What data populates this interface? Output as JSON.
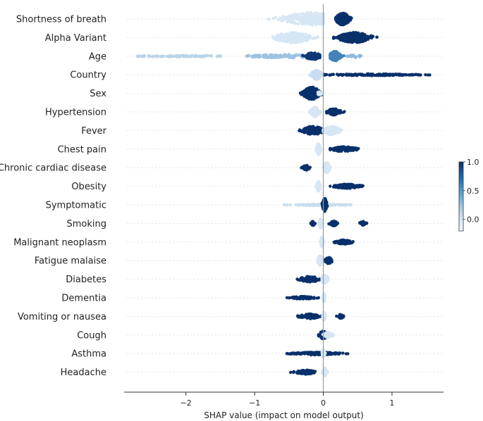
{
  "chart_data": {
    "type": "scatter",
    "subtype": "shap-beeswarm",
    "title": "",
    "xlabel": "SHAP value (impact on model output)",
    "ylabel": "",
    "xlim": [
      -2.9,
      1.75
    ],
    "xticks": [
      -2,
      -1,
      0,
      1
    ],
    "xtick_labels": [
      "−2",
      "−1",
      "0",
      "1"
    ],
    "colorbar": {
      "ticks": [
        1.0,
        0.5,
        0.0
      ],
      "tick_labels": [
        "1.0",
        "0.5",
        "0.0"
      ],
      "colormap": "Blues",
      "range": [
        -0.2,
        1.0
      ]
    },
    "colors": {
      "low": "#d6e6f4",
      "mid": "#4a8cc4",
      "high": "#08306b",
      "axis": "#333333",
      "zero_line": "#999999",
      "grid": "#dddddd"
    },
    "features": [
      {
        "name": "Shortness of breath",
        "clusters": [
          {
            "x": [
              -0.8,
              0.0
            ],
            "peak": -0.18,
            "width": 0.42,
            "height": 0.9,
            "color": 0.0,
            "n": 260
          },
          {
            "x": [
              0.18,
              0.5
            ],
            "peak": 0.28,
            "width": 0.1,
            "height": 0.85,
            "color": 1.0,
            "n": 220
          }
        ]
      },
      {
        "name": "Alpha Variant",
        "clusters": [
          {
            "x": [
              -0.9,
              -0.05
            ],
            "peak": -0.45,
            "width": 0.25,
            "height": 0.75,
            "color": 0.0,
            "n": 220
          },
          {
            "x": [
              0.05,
              0.78
            ],
            "peak": 0.45,
            "width": 0.22,
            "height": 0.75,
            "color": 1.0,
            "n": 210
          }
        ]
      },
      {
        "name": "Age",
        "clusters": [
          {
            "x": [
              -2.7,
              -1.5
            ],
            "peak": -2.1,
            "width": 0.7,
            "height": 0.1,
            "color": 0.1,
            "n": 110
          },
          {
            "x": [
              -1.5,
              -0.3
            ],
            "peak": -0.6,
            "width": 0.5,
            "height": 0.25,
            "color": 0.2,
            "n": 120
          },
          {
            "x": [
              -0.3,
              -0.05
            ],
            "peak": -0.15,
            "width": 0.12,
            "height": 0.5,
            "color": 0.95,
            "n": 90
          },
          {
            "x": [
              0.1,
              0.4
            ],
            "peak": 0.17,
            "width": 0.08,
            "height": 0.7,
            "color": 0.55,
            "n": 110
          },
          {
            "x": [
              0.3,
              0.6
            ],
            "peak": 0.45,
            "width": 0.1,
            "height": 0.2,
            "color": 0.25,
            "n": 25
          }
        ]
      },
      {
        "name": "Country",
        "clusters": [
          {
            "x": [
              -0.2,
              0.0
            ],
            "peak": -0.1,
            "width": 0.07,
            "height": 0.7,
            "color": 0.05,
            "n": 150
          },
          {
            "x": [
              0.02,
              1.55
            ],
            "peak": 0.7,
            "width": 0.7,
            "height": 0.12,
            "color": 1.0,
            "n": 180
          }
        ]
      },
      {
        "name": "Sex",
        "clusters": [
          {
            "x": [
              -0.45,
              0.0
            ],
            "peak": -0.17,
            "width": 0.12,
            "height": 0.9,
            "color": 1.0,
            "n": 260
          },
          {
            "x": [
              -0.1,
              0.0
            ],
            "peak": -0.05,
            "width": 0.04,
            "height": 0.25,
            "color": 0.0,
            "n": 30
          }
        ]
      },
      {
        "name": "Hypertension",
        "clusters": [
          {
            "x": [
              -0.25,
              -0.02
            ],
            "peak": -0.12,
            "width": 0.06,
            "height": 0.7,
            "color": 0.0,
            "n": 160
          },
          {
            "x": [
              0.02,
              0.35
            ],
            "peak": 0.15,
            "width": 0.1,
            "height": 0.45,
            "color": 1.0,
            "n": 90
          }
        ]
      },
      {
        "name": "Fever",
        "clusters": [
          {
            "x": [
              -0.5,
              -0.02
            ],
            "peak": -0.15,
            "width": 0.15,
            "height": 0.6,
            "color": 1.0,
            "n": 170
          },
          {
            "x": [
              0.0,
              0.4
            ],
            "peak": 0.12,
            "width": 0.12,
            "height": 0.6,
            "color": 0.0,
            "n": 160
          }
        ]
      },
      {
        "name": "Chest pain",
        "clusters": [
          {
            "x": [
              -0.12,
              -0.02
            ],
            "peak": -0.07,
            "width": 0.025,
            "height": 0.8,
            "color": 0.0,
            "n": 110
          },
          {
            "x": [
              0.1,
              0.62
            ],
            "peak": 0.3,
            "width": 0.18,
            "height": 0.35,
            "color": 1.0,
            "n": 120
          }
        ]
      },
      {
        "name": "Chronic cardiac disease",
        "clusters": [
          {
            "x": [
              -0.35,
              -0.18
            ],
            "peak": -0.25,
            "width": 0.05,
            "height": 0.35,
            "color": 1.0,
            "n": 60
          },
          {
            "x": [
              -0.05,
              0.12
            ],
            "peak": 0.05,
            "width": 0.04,
            "height": 0.75,
            "color": 0.0,
            "n": 140
          }
        ]
      },
      {
        "name": "Obesity",
        "clusters": [
          {
            "x": [
              -0.12,
              -0.02
            ],
            "peak": -0.07,
            "width": 0.025,
            "height": 0.7,
            "color": 0.0,
            "n": 100
          },
          {
            "x": [
              0.1,
              0.72
            ],
            "peak": 0.35,
            "width": 0.2,
            "height": 0.3,
            "color": 1.0,
            "n": 110
          }
        ]
      },
      {
        "name": "Symptomatic",
        "clusters": [
          {
            "x": [
              -1.0,
              0.4
            ],
            "peak": 0.0,
            "width": 0.4,
            "height": 0.12,
            "color": 0.05,
            "n": 110
          },
          {
            "x": [
              -0.05,
              0.08
            ],
            "peak": 0.02,
            "width": 0.03,
            "height": 0.95,
            "color": 1.0,
            "n": 140
          }
        ]
      },
      {
        "name": "Smoking",
        "clusters": [
          {
            "x": [
              -0.2,
              -0.1
            ],
            "peak": -0.15,
            "width": 0.03,
            "height": 0.3,
            "color": 1.0,
            "n": 30
          },
          {
            "x": [
              -0.08,
              0.0
            ],
            "peak": -0.04,
            "width": 0.02,
            "height": 0.7,
            "color": 0.0,
            "n": 100
          },
          {
            "x": [
              0.08,
              0.22
            ],
            "peak": 0.15,
            "width": 0.05,
            "height": 0.35,
            "color": 1.0,
            "n": 50
          },
          {
            "x": [
              0.5,
              0.66
            ],
            "peak": 0.58,
            "width": 0.05,
            "height": 0.3,
            "color": 1.0,
            "n": 30
          }
        ]
      },
      {
        "name": "Malignant neoplasm",
        "clusters": [
          {
            "x": [
              -0.06,
              0.02
            ],
            "peak": -0.02,
            "width": 0.02,
            "height": 0.7,
            "color": 0.0,
            "n": 100
          },
          {
            "x": [
              0.1,
              0.5
            ],
            "peak": 0.3,
            "width": 0.12,
            "height": 0.3,
            "color": 1.0,
            "n": 100
          }
        ]
      },
      {
        "name": "Fatigue malaise",
        "clusters": [
          {
            "x": [
              -0.1,
              0.0
            ],
            "peak": -0.05,
            "width": 0.03,
            "height": 0.7,
            "color": 0.0,
            "n": 100
          },
          {
            "x": [
              0.0,
              0.2
            ],
            "peak": 0.08,
            "width": 0.05,
            "height": 0.45,
            "color": 1.0,
            "n": 70
          }
        ]
      },
      {
        "name": "Diabetes",
        "clusters": [
          {
            "x": [
              -0.55,
              -0.05
            ],
            "peak": -0.2,
            "width": 0.15,
            "height": 0.4,
            "color": 1.0,
            "n": 90
          },
          {
            "x": [
              -0.02,
              0.18
            ],
            "peak": 0.02,
            "width": 0.05,
            "height": 0.6,
            "color": 0.0,
            "n": 100
          }
        ]
      },
      {
        "name": "Dementia",
        "clusters": [
          {
            "x": [
              -0.55,
              -0.02
            ],
            "peak": -0.3,
            "width": 0.18,
            "height": 0.2,
            "color": 1.0,
            "n": 70
          },
          {
            "x": [
              -0.02,
              0.04
            ],
            "peak": 0.01,
            "width": 0.015,
            "height": 0.6,
            "color": 0.0,
            "n": 70
          }
        ]
      },
      {
        "name": "Vomiting or nausea",
        "clusters": [
          {
            "x": [
              -0.45,
              -0.02
            ],
            "peak": -0.2,
            "width": 0.14,
            "height": 0.35,
            "color": 1.0,
            "n": 100
          },
          {
            "x": [
              -0.02,
              0.05
            ],
            "peak": 0.01,
            "width": 0.02,
            "height": 0.6,
            "color": 0.0,
            "n": 70
          },
          {
            "x": [
              0.18,
              0.32
            ],
            "peak": 0.25,
            "width": 0.04,
            "height": 0.3,
            "color": 1.0,
            "n": 20
          }
        ]
      },
      {
        "name": "Cough",
        "clusters": [
          {
            "x": [
              -0.15,
              0.15
            ],
            "peak": 0.0,
            "width": 0.06,
            "height": 0.55,
            "color": 1.0,
            "n": 100
          },
          {
            "x": [
              -0.05,
              0.2
            ],
            "peak": 0.07,
            "width": 0.06,
            "height": 0.4,
            "color": 0.0,
            "n": 70
          }
        ]
      },
      {
        "name": "Asthma",
        "clusters": [
          {
            "x": [
              -0.8,
              0.5
            ],
            "peak": -0.1,
            "width": 0.35,
            "height": 0.2,
            "color": 1.0,
            "n": 150
          },
          {
            "x": [
              -0.05,
              0.05
            ],
            "peak": 0.0,
            "width": 0.02,
            "height": 0.6,
            "color": 0.0,
            "n": 60
          }
        ]
      },
      {
        "name": "Headache",
        "clusters": [
          {
            "x": [
              -0.55,
              -0.02
            ],
            "peak": -0.25,
            "width": 0.15,
            "height": 0.3,
            "color": 1.0,
            "n": 90
          },
          {
            "x": [
              -0.02,
              0.1
            ],
            "peak": 0.02,
            "width": 0.03,
            "height": 0.6,
            "color": 0.0,
            "n": 60
          }
        ]
      }
    ]
  }
}
